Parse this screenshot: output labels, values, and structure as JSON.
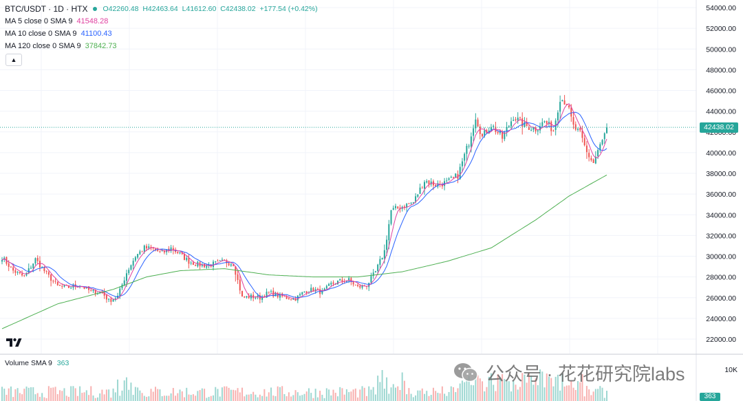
{
  "legend": {
    "symbol": "BTC/USDT · 1D · HTX",
    "ohlc": {
      "open": "O42260.48",
      "high": "H42463.64",
      "low": "L41612.60",
      "close": "C42438.02",
      "change": "+177.54 (+0.42%)"
    },
    "ma": [
      {
        "label": "MA 5 close 0 SMA 9",
        "value": "41548.28",
        "color": "#e040a0"
      },
      {
        "label": "MA 10 close 0 SMA 9",
        "value": "41100.43",
        "color": "#2962ff"
      },
      {
        "label": "MA 120 close 0 SMA 9",
        "value": "37842.73",
        "color": "#4caf50"
      }
    ],
    "collapse_icon": "chevron-up-icon"
  },
  "volume": {
    "label": "Volume SMA 9",
    "value": "363",
    "axis_partial": "10K"
  },
  "price_tag": "42438.02",
  "watermark": "公众号 · 花花研究院labs",
  "colors": {
    "up": "#26a69a",
    "down": "#ef5350",
    "grid": "#f0f3fa"
  },
  "chart_data": {
    "type": "candlestick",
    "y_ticks": [
      "54000.00",
      "52000.00",
      "50000.00",
      "48000.00",
      "46000.00",
      "44000.00",
      "42000.00",
      "40000.00",
      "38000.00",
      "36000.00",
      "34000.00",
      "32000.00",
      "30000.00",
      "28000.00",
      "26000.00",
      "24000.00",
      "22000.00"
    ],
    "ylim": [
      21000,
      55000
    ],
    "last_price": 42438.02,
    "price_anchors": [
      [
        0,
        29900
      ],
      [
        5,
        28600
      ],
      [
        10,
        28000
      ],
      [
        15,
        29700
      ],
      [
        20,
        28300
      ],
      [
        25,
        27100
      ],
      [
        30,
        27000
      ],
      [
        35,
        27200
      ],
      [
        40,
        26600
      ],
      [
        45,
        26500
      ],
      [
        48,
        25700
      ],
      [
        52,
        26100
      ],
      [
        56,
        28400
      ],
      [
        60,
        30000
      ],
      [
        64,
        30800
      ],
      [
        68,
        30700
      ],
      [
        72,
        30300
      ],
      [
        76,
        30800
      ],
      [
        80,
        30200
      ],
      [
        84,
        29500
      ],
      [
        88,
        29200
      ],
      [
        92,
        29100
      ],
      [
        96,
        29300
      ],
      [
        100,
        29500
      ],
      [
        104,
        29300
      ],
      [
        108,
        26000
      ],
      [
        112,
        26100
      ],
      [
        116,
        26000
      ],
      [
        120,
        26500
      ],
      [
        124,
        26200
      ],
      [
        128,
        26000
      ],
      [
        132,
        25900
      ],
      [
        136,
        26600
      ],
      [
        140,
        26800
      ],
      [
        144,
        26500
      ],
      [
        148,
        27300
      ],
      [
        152,
        27600
      ],
      [
        156,
        27700
      ],
      [
        160,
        27000
      ],
      [
        164,
        27200
      ],
      [
        168,
        28500
      ],
      [
        172,
        30500
      ],
      [
        175,
        34400
      ],
      [
        180,
        34800
      ],
      [
        185,
        35200
      ],
      [
        190,
        37300
      ],
      [
        195,
        36900
      ],
      [
        200,
        37100
      ],
      [
        205,
        37800
      ],
      [
        210,
        41000
      ],
      [
        213,
        43500
      ],
      [
        216,
        41500
      ],
      [
        220,
        42700
      ],
      [
        225,
        41400
      ],
      [
        230,
        43500
      ],
      [
        235,
        42600
      ],
      [
        240,
        42300
      ],
      [
        244,
        43000
      ],
      [
        248,
        42200
      ],
      [
        251,
        45300
      ],
      [
        254,
        44800
      ],
      [
        257,
        42500
      ],
      [
        260,
        41800
      ],
      [
        263,
        40000
      ],
      [
        266,
        39000
      ],
      [
        268,
        40200
      ],
      [
        270,
        41100
      ],
      [
        272,
        42438
      ]
    ],
    "ma120_anchors": [
      [
        0,
        23000
      ],
      [
        25,
        25400
      ],
      [
        50,
        26800
      ],
      [
        65,
        28000
      ],
      [
        80,
        28600
      ],
      [
        100,
        28800
      ],
      [
        120,
        28200
      ],
      [
        140,
        28000
      ],
      [
        160,
        28000
      ],
      [
        180,
        28500
      ],
      [
        200,
        29500
      ],
      [
        220,
        30800
      ],
      [
        240,
        33500
      ],
      [
        255,
        35800
      ],
      [
        272,
        37843
      ]
    ]
  }
}
